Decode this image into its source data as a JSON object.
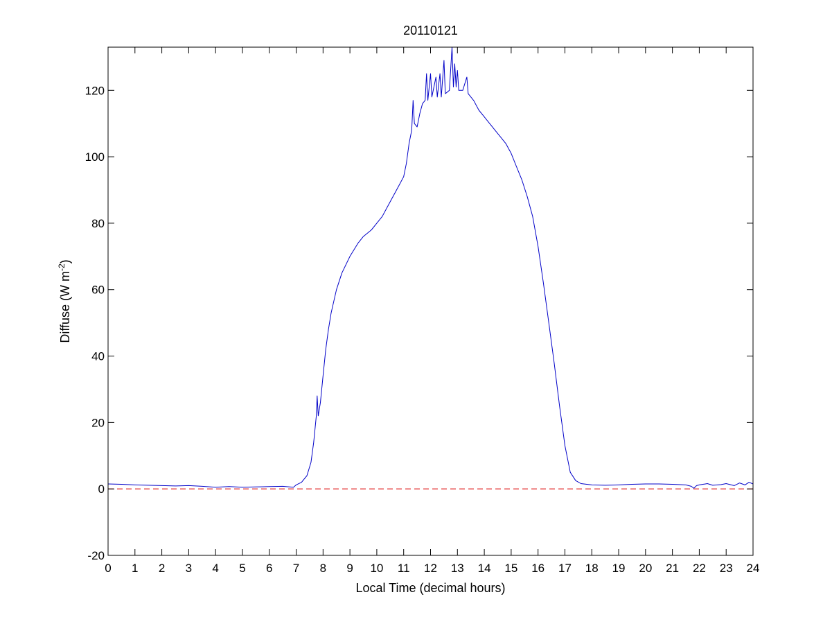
{
  "chart_data": {
    "type": "line",
    "title": "20110121",
    "xlabel": "Local Time (decimal hours)",
    "ylabel": {
      "main": "Diffuse (W m",
      "sup": "-2",
      "close": ")"
    },
    "xlim": [
      0,
      24
    ],
    "ylim": [
      -20,
      133
    ],
    "xticks": [
      0,
      1,
      2,
      3,
      4,
      5,
      6,
      7,
      8,
      9,
      10,
      11,
      12,
      13,
      14,
      15,
      16,
      17,
      18,
      19,
      20,
      21,
      22,
      23,
      24
    ],
    "yticks": [
      -20,
      0,
      20,
      40,
      60,
      80,
      100,
      120
    ],
    "grid": false,
    "legend": "none",
    "reference_line": {
      "y": 0,
      "color": "#dd0000",
      "style": "dashed"
    },
    "series": [
      {
        "color": "#0000c8",
        "points": [
          [
            0,
            1.5
          ],
          [
            0.5,
            1.4
          ],
          [
            1,
            1.2
          ],
          [
            1.5,
            1.1
          ],
          [
            2,
            1.0
          ],
          [
            2.5,
            0.9
          ],
          [
            3,
            1.0
          ],
          [
            3.5,
            0.8
          ],
          [
            4,
            0.5
          ],
          [
            4.5,
            0.7
          ],
          [
            5,
            0.5
          ],
          [
            5.5,
            0.6
          ],
          [
            6,
            0.7
          ],
          [
            6.5,
            0.8
          ],
          [
            6.9,
            0.5
          ],
          [
            7.0,
            1.2
          ],
          [
            7.2,
            2
          ],
          [
            7.4,
            4
          ],
          [
            7.55,
            8
          ],
          [
            7.65,
            14
          ],
          [
            7.75,
            22
          ],
          [
            7.78,
            28
          ],
          [
            7.82,
            22
          ],
          [
            7.9,
            26
          ],
          [
            8.0,
            34
          ],
          [
            8.1,
            42
          ],
          [
            8.2,
            48
          ],
          [
            8.3,
            53
          ],
          [
            8.5,
            60
          ],
          [
            8.7,
            65
          ],
          [
            9.0,
            70
          ],
          [
            9.3,
            74
          ],
          [
            9.5,
            76
          ],
          [
            9.8,
            78
          ],
          [
            10.0,
            80
          ],
          [
            10.2,
            82
          ],
          [
            10.4,
            85
          ],
          [
            10.6,
            88
          ],
          [
            10.8,
            91
          ],
          [
            11.0,
            94
          ],
          [
            11.1,
            98
          ],
          [
            11.2,
            104
          ],
          [
            11.3,
            108
          ],
          [
            11.35,
            117
          ],
          [
            11.4,
            110
          ],
          [
            11.5,
            109
          ],
          [
            11.6,
            113
          ],
          [
            11.7,
            116
          ],
          [
            11.8,
            117
          ],
          [
            11.85,
            125
          ],
          [
            11.9,
            117
          ],
          [
            12.0,
            125
          ],
          [
            12.05,
            118
          ],
          [
            12.2,
            124
          ],
          [
            12.25,
            118
          ],
          [
            12.35,
            125
          ],
          [
            12.4,
            118
          ],
          [
            12.5,
            129
          ],
          [
            12.55,
            119
          ],
          [
            12.7,
            120
          ],
          [
            12.8,
            133
          ],
          [
            12.85,
            121
          ],
          [
            12.9,
            128
          ],
          [
            12.95,
            121
          ],
          [
            13.0,
            126
          ],
          [
            13.05,
            120
          ],
          [
            13.2,
            120
          ],
          [
            13.35,
            124
          ],
          [
            13.4,
            119
          ],
          [
            13.6,
            117
          ],
          [
            13.8,
            114
          ],
          [
            14.0,
            112
          ],
          [
            14.2,
            110
          ],
          [
            14.4,
            108
          ],
          [
            14.6,
            106
          ],
          [
            14.8,
            104
          ],
          [
            15.0,
            101
          ],
          [
            15.2,
            97
          ],
          [
            15.4,
            93
          ],
          [
            15.6,
            88
          ],
          [
            15.8,
            82
          ],
          [
            16.0,
            73
          ],
          [
            16.2,
            62
          ],
          [
            16.4,
            50
          ],
          [
            16.6,
            38
          ],
          [
            16.8,
            25
          ],
          [
            17.0,
            13
          ],
          [
            17.2,
            5
          ],
          [
            17.4,
            2.5
          ],
          [
            17.6,
            1.6
          ],
          [
            18.0,
            1.2
          ],
          [
            18.5,
            1.1
          ],
          [
            19.0,
            1.2
          ],
          [
            19.5,
            1.4
          ],
          [
            20.0,
            1.5
          ],
          [
            20.5,
            1.5
          ],
          [
            21.0,
            1.4
          ],
          [
            21.5,
            1.2
          ],
          [
            21.7,
            0.8
          ],
          [
            21.8,
            0.2
          ],
          [
            21.9,
            1.0
          ],
          [
            22.0,
            1.2
          ],
          [
            22.3,
            1.6
          ],
          [
            22.5,
            1.1
          ],
          [
            22.8,
            1.3
          ],
          [
            23.0,
            1.6
          ],
          [
            23.3,
            1.0
          ],
          [
            23.5,
            1.8
          ],
          [
            23.7,
            1.2
          ],
          [
            23.85,
            2.0
          ],
          [
            24.0,
            1.5
          ]
        ]
      }
    ]
  }
}
